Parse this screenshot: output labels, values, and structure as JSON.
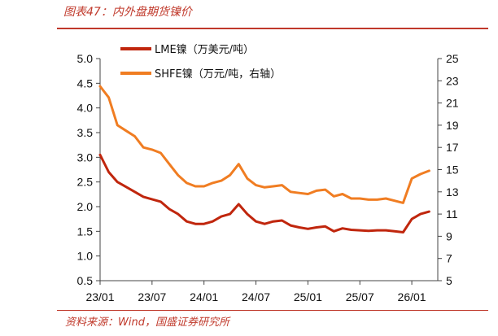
{
  "header": {
    "title": "图表47：内外盘期货镍价"
  },
  "footer": {
    "source": "资料来源：Wind，国盛证券研究所"
  },
  "colors": {
    "accent": "#c0392b",
    "lme": "#c0260d",
    "shfe": "#f07d22"
  },
  "chart_data": {
    "type": "line",
    "title": "",
    "xlabel": "",
    "ylabel": "",
    "y2label": "",
    "x_ticks": [
      "23/01",
      "23/07",
      "24/01",
      "24/07",
      "25/01",
      "25/07",
      "26/01"
    ],
    "y_ticks": [
      "0.5",
      "1.0",
      "1.5",
      "2.0",
      "2.5",
      "3.0",
      "3.5",
      "4.0",
      "4.5",
      "5.0"
    ],
    "y2_ticks": [
      "5",
      "7",
      "9",
      "11",
      "13",
      "15",
      "17",
      "19",
      "21",
      "23",
      "25"
    ],
    "ylim": [
      0.5,
      5.0
    ],
    "y2lim": [
      5,
      25
    ],
    "xlim": [
      "2023-01",
      "2026-04"
    ],
    "grid": false,
    "legend_position": "top-left",
    "series": [
      {
        "name": "LME镍（万美元/吨）",
        "axis": "left",
        "x": [
          "2023-01",
          "2023-02",
          "2023-03",
          "2023-04",
          "2023-05",
          "2023-06",
          "2023-07",
          "2023-08",
          "2023-09",
          "2023-10",
          "2023-11",
          "2023-12",
          "2024-01",
          "2024-02",
          "2024-03",
          "2024-04",
          "2024-05",
          "2024-06",
          "2024-07",
          "2024-08",
          "2024-09",
          "2024-10",
          "2024-11",
          "2024-12",
          "2025-01",
          "2025-02",
          "2025-03",
          "2025-04",
          "2025-05",
          "2025-06",
          "2025-07",
          "2025-08",
          "2025-09",
          "2025-10",
          "2025-11",
          "2025-12",
          "2026-01",
          "2026-02",
          "2026-03"
        ],
        "values": [
          3.05,
          2.7,
          2.5,
          2.4,
          2.3,
          2.2,
          2.15,
          2.1,
          1.95,
          1.85,
          1.7,
          1.65,
          1.65,
          1.7,
          1.8,
          1.85,
          2.05,
          1.85,
          1.7,
          1.65,
          1.7,
          1.72,
          1.62,
          1.58,
          1.55,
          1.58,
          1.6,
          1.5,
          1.56,
          1.53,
          1.52,
          1.51,
          1.52,
          1.52,
          1.5,
          1.48,
          1.75,
          1.85,
          1.9
        ]
      },
      {
        "name": "SHFE镍（万元/吨，右轴）",
        "axis": "right",
        "x": [
          "2023-01",
          "2023-02",
          "2023-03",
          "2023-04",
          "2023-05",
          "2023-06",
          "2023-07",
          "2023-08",
          "2023-09",
          "2023-10",
          "2023-11",
          "2023-12",
          "2024-01",
          "2024-02",
          "2024-03",
          "2024-04",
          "2024-05",
          "2024-06",
          "2024-07",
          "2024-08",
          "2024-09",
          "2024-10",
          "2024-11",
          "2024-12",
          "2025-01",
          "2025-02",
          "2025-03",
          "2025-04",
          "2025-05",
          "2025-06",
          "2025-07",
          "2025-08",
          "2025-09",
          "2025-10",
          "2025-11",
          "2025-12",
          "2026-01",
          "2026-02",
          "2026-03"
        ],
        "values": [
          22.5,
          21.5,
          19.0,
          18.5,
          18.0,
          17.0,
          16.8,
          16.5,
          15.5,
          14.5,
          13.8,
          13.5,
          13.5,
          13.8,
          14.0,
          14.5,
          15.5,
          14.2,
          13.6,
          13.4,
          13.5,
          13.6,
          13.0,
          12.9,
          12.8,
          13.1,
          13.2,
          12.6,
          12.8,
          12.4,
          12.4,
          12.3,
          12.3,
          12.4,
          12.2,
          12.0,
          14.2,
          14.6,
          14.9
        ]
      }
    ]
  }
}
